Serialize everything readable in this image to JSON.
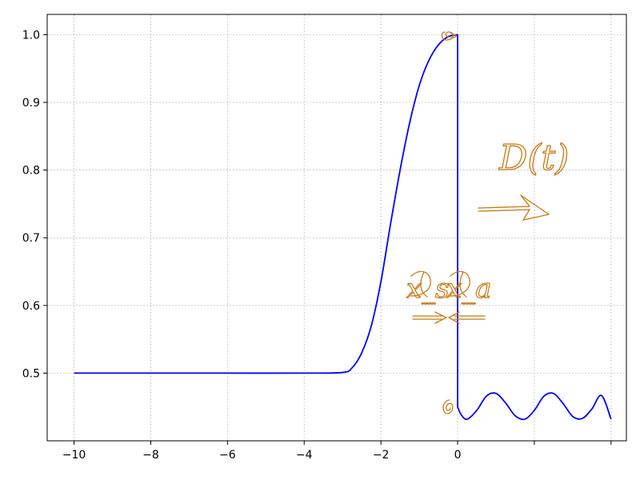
{
  "chart_data": {
    "type": "line",
    "title": "",
    "xlabel": "",
    "ylabel": "",
    "xlim": [
      -10.7,
      4.4
    ],
    "ylim": [
      0.4,
      1.03
    ],
    "grid": true,
    "x_ticks": [
      -10,
      -8,
      -6,
      -4,
      -2,
      0,
      2,
      4
    ],
    "x_tick_labels": [
      "−10",
      "−8",
      "−6",
      "−4",
      "−2",
      "0",
      "",
      ""
    ],
    "y_ticks": [
      0.5,
      0.6,
      0.7,
      0.8,
      0.9,
      1.0
    ],
    "y_tick_labels": [
      "0.5",
      "0.6",
      "0.7",
      "0.8",
      "0.9",
      "1.0"
    ],
    "series": [
      {
        "color": "#0000ff",
        "x": [
          -10,
          -8,
          -6,
          -4,
          -3,
          -2.75,
          -2.5,
          -2.25,
          -2,
          -1.75,
          -1.5,
          -1.25,
          -1,
          -0.75,
          -0.5,
          -0.25,
          0,
          0,
          0.1,
          0.25,
          0.5,
          0.75,
          1.0,
          1.25,
          1.5,
          1.75,
          2.0,
          2.25,
          2.5,
          2.75,
          3.0,
          3.25,
          3.5,
          3.75,
          4.0
        ],
        "y": [
          0.5,
          0.5,
          0.5,
          0.5,
          0.501,
          0.508,
          0.53,
          0.57,
          0.635,
          0.72,
          0.8,
          0.87,
          0.925,
          0.962,
          0.985,
          0.997,
          1.0,
          0.45,
          0.438,
          0.432,
          0.445,
          0.466,
          0.47,
          0.456,
          0.437,
          0.432,
          0.445,
          0.466,
          0.47,
          0.455,
          0.436,
          0.433,
          0.447,
          0.467,
          0.432
        ]
      }
    ],
    "annotations": [
      {
        "text": "D(t)"
      },
      {
        "text": "x_s"
      },
      {
        "text": "x_a"
      }
    ]
  }
}
